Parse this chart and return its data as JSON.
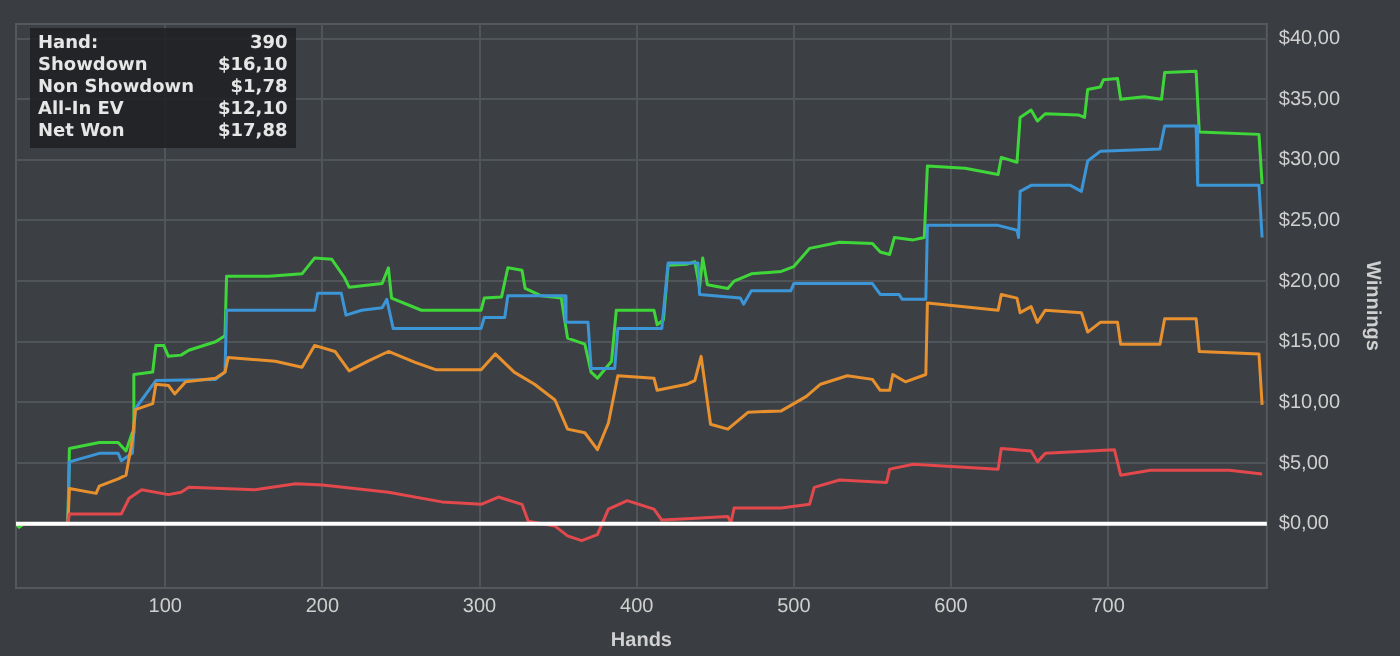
{
  "chart_data": {
    "type": "line",
    "xlabel": "Hands",
    "ylabel": "Winnings",
    "xlim": [
      5,
      801
    ],
    "xticks": [
      100,
      200,
      300,
      400,
      500,
      600,
      700
    ],
    "ylim": [
      -5.3,
      41.2
    ],
    "yticks": [
      {
        "value": 0,
        "label": "$0,00"
      },
      {
        "value": 5,
        "label": "$5,00"
      },
      {
        "value": 10,
        "label": "$10,00"
      },
      {
        "value": 15,
        "label": "$15,00"
      },
      {
        "value": 20,
        "label": "$20,00"
      },
      {
        "value": 25,
        "label": "$25,00"
      },
      {
        "value": 30,
        "label": "$30,00"
      },
      {
        "value": 35,
        "label": "$35,00"
      },
      {
        "value": 40,
        "label": "$40,00"
      }
    ],
    "grid": true,
    "legend": false,
    "marker": "none",
    "line_style": "solid",
    "ref_lines": [
      {
        "axis": "y",
        "value": 0,
        "color": "#ffffff"
      }
    ],
    "annotations": [
      "Hand:",
      "390",
      "Showdown",
      "$16,10",
      "Non Showdown",
      "$1,78",
      "All-In EV",
      "$12,10",
      "Net Won",
      "$17,88"
    ],
    "series": [
      {
        "color": "#e2484c",
        "x": [
          5,
          38,
          39,
          56,
          72,
          77,
          85,
          102,
          110,
          115,
          157,
          183,
          200,
          242,
          276,
          301,
          312,
          327,
          331,
          348,
          356,
          365,
          375,
          382,
          394,
          411,
          416,
          432,
          458,
          460,
          462,
          492,
          510,
          513,
          529,
          559,
          561,
          576,
          630,
          632,
          651,
          655,
          660,
          704,
          708,
          727,
          777,
          798
        ],
        "values": [
          0,
          0,
          0.8,
          0.8,
          0.8,
          2.1,
          2.8,
          2.4,
          2.6,
          3,
          2.8,
          3.3,
          3.2,
          2.6,
          1.8,
          1.6,
          2.2,
          1.6,
          0.2,
          -0.2,
          -1,
          -1.4,
          -0.9,
          1.2,
          1.9,
          1.2,
          0.3,
          0.4,
          0.6,
          0.1,
          1.3,
          1.3,
          1.6,
          3,
          3.6,
          3.4,
          4.5,
          4.9,
          4.5,
          6.2,
          6,
          5.1,
          5.8,
          6.1,
          4,
          4.4,
          4.4,
          4.1
        ]
      },
      {
        "color": "#e8902e",
        "x": [
          5,
          38,
          39,
          56,
          58,
          70,
          75,
          79,
          81,
          92,
          94,
          102,
          106,
          113,
          132,
          138,
          140,
          170,
          187,
          195,
          208,
          217,
          229,
          242,
          259,
          272,
          301,
          310,
          322,
          335,
          348,
          356,
          367,
          375,
          382,
          388,
          411,
          413,
          432,
          437,
          441,
          447,
          458,
          471,
          492,
          508,
          517,
          534,
          550,
          555,
          561,
          563,
          571,
          584,
          585,
          630,
          632,
          642,
          644,
          651,
          655,
          660,
          683,
          687,
          695,
          706,
          708,
          733,
          736,
          756,
          758,
          796,
          798
        ],
        "values": [
          0,
          0,
          2.9,
          2.5,
          3.1,
          3.7,
          4,
          6.9,
          9.4,
          9.9,
          11.5,
          11.4,
          10.7,
          11.7,
          12,
          12.5,
          13.7,
          13.4,
          12.9,
          14.7,
          14.2,
          12.6,
          13.4,
          14.2,
          13.3,
          12.7,
          12.7,
          14,
          12.5,
          11.5,
          10.2,
          7.8,
          7.5,
          6.1,
          8.3,
          12.2,
          12,
          11,
          11.5,
          11.8,
          13.8,
          8.2,
          7.8,
          9.2,
          9.3,
          10.5,
          11.5,
          12.2,
          11.9,
          11,
          11,
          12.3,
          11.7,
          12.3,
          18.2,
          17.6,
          18.9,
          18.6,
          17.4,
          17.9,
          16.6,
          17.6,
          17.4,
          15.8,
          16.6,
          16.6,
          14.8,
          14.8,
          16.9,
          16.9,
          14.2,
          14,
          9.8
        ]
      },
      {
        "color": "#3b95d6",
        "x": [
          5,
          38,
          39,
          58,
          70,
          72,
          79,
          81,
          94,
          132,
          138,
          139,
          195,
          197,
          212,
          215,
          225,
          238,
          241,
          245,
          301,
          303,
          316,
          318,
          354,
          355,
          369,
          371,
          386,
          388,
          416,
          420,
          439,
          440,
          466,
          468,
          473,
          498,
          500,
          550,
          555,
          567,
          569,
          584,
          585,
          630,
          642,
          643,
          644,
          651,
          676,
          683,
          687,
          695,
          733,
          736,
          756,
          757,
          796,
          798
        ],
        "values": [
          0,
          0,
          5.1,
          5.8,
          5.8,
          5.2,
          5.8,
          9.5,
          11.8,
          11.9,
          12.5,
          17.6,
          17.6,
          19,
          19,
          17.2,
          17.6,
          17.8,
          18.5,
          16.1,
          16.1,
          17,
          17,
          18.8,
          18.8,
          16.6,
          16.6,
          12.8,
          12.8,
          16.1,
          16.1,
          21.5,
          21.5,
          18.9,
          18.6,
          18.1,
          19.2,
          19.2,
          19.8,
          19.8,
          18.9,
          18.9,
          18.5,
          18.5,
          24.6,
          24.6,
          24.2,
          23.6,
          27.4,
          27.9,
          27.9,
          27.4,
          29.9,
          30.7,
          30.9,
          32.8,
          32.8,
          27.9,
          27.9,
          23.6
        ]
      },
      {
        "color": "#3fd63a",
        "x": [
          5,
          7,
          10,
          38,
          39,
          58,
          70,
          75,
          79,
          80,
          92,
          94,
          99,
          102,
          110,
          115,
          132,
          138,
          139,
          166,
          187,
          195,
          206,
          214,
          217,
          238,
          242,
          244,
          263,
          301,
          303,
          314,
          318,
          327,
          329,
          339,
          352,
          356,
          367,
          371,
          375,
          384,
          387,
          411,
          413,
          417,
          420,
          432,
          437,
          440,
          442,
          445,
          458,
          462,
          473,
          492,
          500,
          510,
          529,
          550,
          555,
          561,
          564,
          576,
          583,
          585,
          609,
          630,
          632,
          642,
          644,
          651,
          655,
          660,
          681,
          685,
          687,
          695,
          697,
          706,
          708,
          723,
          734,
          736,
          756,
          758,
          796,
          798
        ],
        "values": [
          0,
          -0.3,
          0,
          0,
          6.2,
          6.7,
          6.7,
          6,
          7.5,
          12.3,
          12.5,
          14.7,
          14.7,
          13.8,
          13.9,
          14.3,
          15,
          15.5,
          20.4,
          20.4,
          20.6,
          21.9,
          21.8,
          20.3,
          19.5,
          19.8,
          21.1,
          18.6,
          17.6,
          17.6,
          18.6,
          18.7,
          21.1,
          20.9,
          19.4,
          18.8,
          18.6,
          15.3,
          14.8,
          12.5,
          12,
          13.4,
          17.6,
          17.6,
          16.4,
          16.8,
          21.3,
          21.4,
          21.6,
          19.5,
          21.9,
          19.7,
          19.4,
          20,
          20.6,
          20.8,
          21.2,
          22.7,
          23.2,
          23.1,
          22.4,
          22.2,
          23.6,
          23.4,
          23.6,
          29.5,
          29.3,
          28.8,
          30.2,
          29.8,
          33.5,
          34.1,
          33.2,
          33.8,
          33.7,
          33.5,
          35.8,
          36,
          36.6,
          36.7,
          35,
          35.2,
          35,
          37.2,
          37.3,
          32.3,
          32.1,
          28
        ]
      }
    ]
  }
}
